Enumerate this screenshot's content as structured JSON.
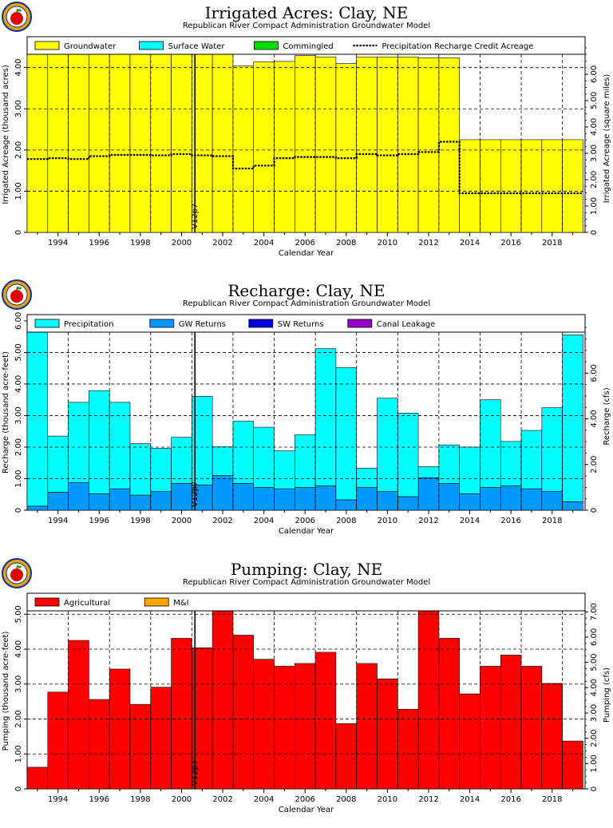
{
  "panels": [
    {
      "title": "Irrigated Acres:  Clay,  NE",
      "subtitle": "Republican  River  Compact  Administration  Groundwater  Model",
      "marker_label": "V12p7"
    },
    {
      "title": "Recharge:  Clay,  NE",
      "subtitle": "Republican  River  Compact  Administration  Groundwater  Model",
      "marker_label": "V12p7"
    },
    {
      "title": "Pumping:  Clay,  NE",
      "subtitle": "Republican  River  Compact  Administration  Groundwater  Model",
      "marker_label": "V12p7"
    }
  ],
  "colors": {
    "groundwater": "#ffff00",
    "surface_water": "#00ffff",
    "commingled": "#00dd00",
    "precipitation": "#00ffff",
    "gw_returns": "#0099ff",
    "sw_returns": "#0000dd",
    "canal_leakage": "#9900cc",
    "agricultural": "#ff0000",
    "mi": "#ffa500",
    "logo_bg": "#f0a000",
    "logo_ring": "#003399"
  },
  "chart_data": [
    {
      "type": "bar",
      "title": "Irrigated Acres:  Clay,  NE",
      "subtitle": "Republican  River  Compact  Administration  Groundwater  Model",
      "xlabel": "Calendar Year",
      "ylabel": "Irrigated Acreage (thousand acres)",
      "ylabel_right": "Irrigated Acreage (square miles)",
      "x": [
        1993,
        1994,
        1995,
        1996,
        1997,
        1998,
        1999,
        2000,
        2001,
        2002,
        2003,
        2004,
        2005,
        2006,
        2007,
        2008,
        2009,
        2010,
        2011,
        2012,
        2013,
        2014,
        2015,
        2016,
        2017,
        2018,
        2019
      ],
      "x_ticks": [
        "1994",
        "1996",
        "1998",
        "2000",
        "2002",
        "2004",
        "2006",
        "2008",
        "2010",
        "2012",
        "2014",
        "2016",
        "2018"
      ],
      "x_tick_values": [
        1994,
        1996,
        1998,
        2000,
        2002,
        2004,
        2006,
        2008,
        2010,
        2012,
        2014,
        2016,
        2018
      ],
      "ylim": [
        0,
        4.75
      ],
      "y_ticks": [
        "0",
        "1.00",
        "2.00",
        "3.00",
        "4.00"
      ],
      "y_tick_values": [
        0,
        1,
        2,
        3,
        4
      ],
      "y2_ticks": [
        "0",
        "1.00",
        "2.00",
        "3.00",
        "4.00",
        "5.00",
        "6.00",
        "7.00"
      ],
      "y2_tick_values": [
        0,
        1,
        2,
        3,
        4,
        5,
        6,
        7
      ],
      "y2_scale": 1.5625,
      "legend": [
        "Groundwater",
        "Surface Water",
        "Commingled",
        "Precipitation Recharge Credit Acreage"
      ],
      "series": [
        {
          "name": "Groundwater",
          "values": [
            4.52,
            4.63,
            4.6,
            4.64,
            4.71,
            4.7,
            4.67,
            4.65,
            4.67,
            4.69,
            4.04,
            4.14,
            4.15,
            4.29,
            4.26,
            4.1,
            4.26,
            4.26,
            4.26,
            4.24,
            4.24,
            2.25,
            2.25,
            2.25,
            2.25,
            2.25,
            2.25
          ]
        },
        {
          "name": "Surface Water",
          "values": [
            0,
            0,
            0,
            0,
            0,
            0,
            0,
            0,
            0,
            0,
            0,
            0,
            0,
            0,
            0,
            0,
            0,
            0,
            0,
            0,
            0,
            0,
            0,
            0,
            0,
            0,
            0
          ]
        },
        {
          "name": "Commingled",
          "values": [
            0,
            0,
            0,
            0,
            0,
            0,
            0,
            0,
            0,
            0,
            0,
            0,
            0,
            0,
            0,
            0,
            0,
            0,
            0,
            0,
            0,
            0,
            0,
            0,
            0,
            0,
            0
          ]
        },
        {
          "name": "Precipitation Recharge Credit Acreage",
          "values": [
            1.78,
            1.8,
            1.78,
            1.85,
            1.88,
            1.88,
            1.87,
            1.9,
            1.87,
            1.85,
            1.55,
            1.62,
            1.8,
            1.83,
            1.83,
            1.8,
            1.9,
            1.87,
            1.9,
            1.95,
            2.2,
            0.95,
            0.95,
            0.95,
            0.95,
            0.95,
            0.95
          ]
        }
      ],
      "marker_x": 2000.65,
      "grid": true,
      "legend_position": "top"
    },
    {
      "type": "bar",
      "title": "Recharge:  Clay,  NE",
      "subtitle": "Republican  River  Compact  Administration  Groundwater  Model",
      "xlabel": "Calendar Year",
      "ylabel": "Recharge (thousand acre-feet)",
      "ylabel_right": "Recharge (cfs)",
      "x": [
        1993,
        1994,
        1995,
        1996,
        1997,
        1998,
        1999,
        2000,
        2001,
        2002,
        2003,
        2004,
        2005,
        2006,
        2007,
        2008,
        2009,
        2010,
        2011,
        2012,
        2013,
        2014,
        2015,
        2016,
        2017,
        2018,
        2019
      ],
      "x_ticks": [
        "1994",
        "1996",
        "1998",
        "2000",
        "2002",
        "2004",
        "2006",
        "2008",
        "2010",
        "2012",
        "2014",
        "2016",
        "2018"
      ],
      "x_tick_values": [
        1994,
        1996,
        1998,
        2000,
        2002,
        2004,
        2006,
        2008,
        2010,
        2012,
        2014,
        2016,
        2018
      ],
      "ylim": [
        0,
        6.2
      ],
      "y_ticks": [
        "0",
        "1.00",
        "2.00",
        "3.00",
        "4.00",
        "5.00",
        "6.00"
      ],
      "y_tick_values": [
        0,
        1,
        2,
        3,
        4,
        5,
        6
      ],
      "y2_ticks": [
        "0",
        "2.00",
        "4.00",
        "6.00",
        "8.00"
      ],
      "y2_tick_values": [
        0,
        2,
        4,
        6,
        8
      ],
      "y2_scale": 1.381,
      "legend": [
        "Precipitation",
        "GW Returns",
        "SW Returns",
        "Canal Leakage"
      ],
      "series": [
        {
          "name": "GW Returns",
          "values": [
            0.13,
            0.57,
            0.88,
            0.52,
            0.68,
            0.48,
            0.59,
            0.85,
            0.8,
            1.1,
            0.85,
            0.72,
            0.68,
            0.72,
            0.77,
            0.33,
            0.72,
            0.59,
            0.43,
            1.03,
            0.85,
            0.52,
            0.72,
            0.77,
            0.68,
            0.59,
            0.27
          ]
        },
        {
          "name": "Precipitation",
          "values": [
            5.98,
            1.78,
            2.54,
            3.27,
            2.74,
            1.63,
            1.37,
            1.46,
            2.81,
            0.91,
            1.97,
            1.91,
            1.2,
            1.67,
            4.35,
            4.19,
            0.61,
            2.96,
            2.65,
            0.35,
            1.22,
            1.48,
            2.78,
            1.41,
            1.85,
            2.66,
            5.29
          ]
        },
        {
          "name": "SW Returns",
          "values": [
            0,
            0,
            0,
            0,
            0,
            0,
            0,
            0,
            0,
            0,
            0,
            0,
            0,
            0,
            0,
            0,
            0,
            0,
            0,
            0,
            0,
            0,
            0,
            0,
            0,
            0,
            0
          ]
        },
        {
          "name": "Canal Leakage",
          "values": [
            0,
            0,
            0,
            0,
            0,
            0,
            0,
            0,
            0,
            0,
            0,
            0,
            0,
            0,
            0,
            0,
            0,
            0,
            0,
            0,
            0,
            0,
            0,
            0,
            0,
            0,
            0
          ]
        }
      ],
      "marker_x": 2000.65,
      "grid": true,
      "legend_position": "top"
    },
    {
      "type": "bar",
      "title": "Pumping:  Clay,  NE",
      "subtitle": "Republican  River  Compact  Administration  Groundwater  Model",
      "xlabel": "Calendar Year",
      "ylabel": "Pumping (thousand acre-feet)",
      "ylabel_right": "Pumping (cfs)",
      "x": [
        1993,
        1994,
        1995,
        1996,
        1997,
        1998,
        1999,
        2000,
        2001,
        2002,
        2003,
        2004,
        2005,
        2006,
        2007,
        2008,
        2009,
        2010,
        2011,
        2012,
        2013,
        2014,
        2015,
        2016,
        2017,
        2018,
        2019
      ],
      "x_ticks": [
        "1994",
        "1996",
        "1998",
        "2000",
        "2002",
        "2004",
        "2006",
        "2008",
        "2010",
        "2012",
        "2014",
        "2016",
        "2018"
      ],
      "x_tick_values": [
        1994,
        1996,
        1998,
        2000,
        2002,
        2004,
        2006,
        2008,
        2010,
        2012,
        2014,
        2016,
        2018
      ],
      "ylim": [
        0,
        5.6
      ],
      "y_ticks": [
        "0",
        "1.00",
        "2.00",
        "3.00",
        "4.00",
        "5.00"
      ],
      "y_tick_values": [
        0,
        1,
        2,
        3,
        4,
        5
      ],
      "y2_ticks": [
        "0",
        "1.00",
        "2.00",
        "3.00",
        "4.00",
        "5.00",
        "6.00",
        "7.00"
      ],
      "y2_tick_values": [
        0,
        1,
        2,
        3,
        4,
        5,
        6,
        7
      ],
      "y2_scale": 1.381,
      "legend": [
        "Agricultural",
        "M&I"
      ],
      "series": [
        {
          "name": "Agricultural",
          "values": [
            0.62,
            2.77,
            4.25,
            2.56,
            3.43,
            2.42,
            2.91,
            4.31,
            4.04,
            5.59,
            4.4,
            3.71,
            3.51,
            3.59,
            3.91,
            1.87,
            3.59,
            3.15,
            2.28,
            5.17,
            4.31,
            2.72,
            3.51,
            3.83,
            3.51,
            3.02,
            1.37
          ]
        },
        {
          "name": "M&I",
          "values": [
            0,
            0,
            0,
            0,
            0,
            0,
            0,
            0,
            0,
            0,
            0,
            0,
            0,
            0,
            0,
            0,
            0,
            0,
            0,
            0,
            0,
            0,
            0,
            0,
            0,
            0,
            0
          ]
        }
      ],
      "marker_x": 2000.65,
      "grid": true,
      "legend_position": "top"
    }
  ]
}
